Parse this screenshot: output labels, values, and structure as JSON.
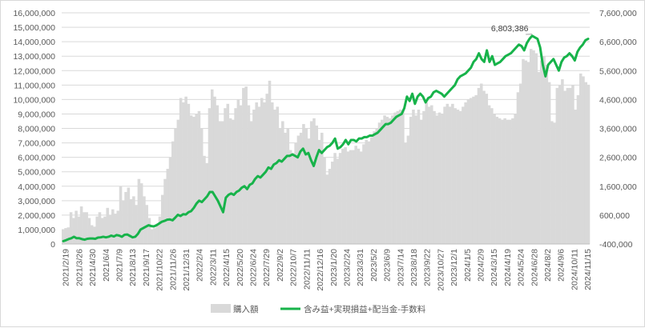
{
  "chart_data": {
    "type": "bar+line",
    "title": "",
    "grid": true,
    "legend_position": "bottom",
    "colors": {
      "bars": "#d9d9d9",
      "line": "#17b34a",
      "grid": "#d9d9d9",
      "text": "#595959"
    },
    "y_left": {
      "min": 0,
      "max": 16000000,
      "step": 1000000,
      "tick_labels": [
        "0",
        "1,000,000",
        "2,000,000",
        "3,000,000",
        "4,000,000",
        "5,000,000",
        "6,000,000",
        "7,000,000",
        "8,000,000",
        "9,000,000",
        "10,000,000",
        "11,000,000",
        "12,000,000",
        "13,000,000",
        "14,000,000",
        "15,000,000",
        "16,000,000"
      ]
    },
    "y_right": {
      "min": -400000,
      "max": 7600000,
      "step": 1000000,
      "tick_labels": [
        "-400,000",
        "600,000",
        "1,600,000",
        "2,600,000",
        "3,600,000",
        "4,600,000",
        "5,600,000",
        "6,600,000",
        "7,600,000"
      ]
    },
    "x_tick_labels": [
      "2021/2/19",
      "2021/3/26",
      "2021/4/30",
      "2021/6/4",
      "2021/7/9",
      "2021/8/13",
      "2021/9/17",
      "2021/10/22",
      "2021/11/26",
      "2021/12/31",
      "2022/2/4",
      "2022/3/11",
      "2022/4/15",
      "2022/5/20",
      "2022/6/24",
      "2022/7/29",
      "2022/9/2",
      "2022/10/7",
      "2022/11/11",
      "2022/12/16",
      "2023/1/20",
      "2023/2/24",
      "2023/3/31",
      "2023/5/2",
      "2023/6/9",
      "2023/7/14",
      "2023/8/18",
      "2023/9/22",
      "2023/10/27",
      "2023/12/1",
      "2024/1/5",
      "2024/2/9",
      "2024/3/15",
      "2024/4/19",
      "2024/5/24",
      "2024/6/28",
      "2024/8/2",
      "2024/9/6",
      "2024/10/11",
      "2024/11/15"
    ],
    "series": [
      {
        "name": "購入額",
        "type": "bar",
        "axis": "left",
        "values": [
          1000000,
          1100000,
          1150000,
          2200000,
          1800000,
          2300000,
          1900000,
          2600000,
          2200000,
          2200000,
          1800000,
          1300000,
          1200000,
          1900000,
          2200000,
          1800000,
          1900000,
          2500000,
          2000000,
          2400000,
          2100000,
          2300000,
          4000000,
          3000000,
          3600000,
          3900000,
          3100000,
          3300000,
          2700000,
          4500000,
          4200000,
          3300000,
          2700000,
          1800000,
          1000000,
          1100000,
          1400000,
          1900000,
          3400000,
          4500000,
          5200000,
          6000000,
          7100000,
          8000000,
          8600000,
          10100000,
          9800000,
          10200000,
          9700000,
          8900000,
          8800000,
          9000000,
          9200000,
          8000000,
          6100000,
          5600000,
          9400000,
          10700000,
          10200000,
          9600000,
          8500000,
          8500000,
          9400000,
          9700000,
          8700000,
          8600000,
          9400000,
          10000000,
          9600000,
          10800000,
          10900000,
          9600000,
          8500000,
          9300000,
          9800000,
          9500000,
          10100000,
          9800000,
          10400000,
          11300000,
          9800000,
          9300000,
          9500000,
          8000000,
          8500000,
          7700000,
          8000000,
          6500000,
          6300000,
          7000000,
          7500000,
          7700000,
          8300000,
          8000000,
          7300000,
          8500000,
          8700000,
          8200000,
          7200000,
          7700000,
          6000000,
          4800000,
          5200000,
          5700000,
          6300000,
          5900000,
          6300000,
          6600000,
          6700000,
          6400000,
          6500000,
          6500000,
          6800000,
          6600000,
          6400000,
          6900000,
          7200000,
          7100000,
          7400000,
          7800000,
          8000000,
          8400000,
          8600000,
          8900000,
          8800000,
          8700000,
          8900000,
          9100000,
          9200000,
          9300000,
          9200000,
          7000000,
          7500000,
          8800000,
          9300000,
          8900000,
          9300000,
          8600000,
          9200000,
          9800000,
          9500000,
          9600000,
          9200000,
          8900000,
          9100000,
          9000000,
          9500000,
          9700000,
          9500000,
          9700000,
          9400000,
          9300000,
          9200000,
          9500000,
          9800000,
          10000000,
          10100000,
          10200000,
          10300000,
          10800000,
          11100000,
          10600000,
          10400000,
          9600000,
          9400000,
          9000000,
          8800000,
          8700000,
          8600000,
          8700000,
          8600000,
          8600000,
          8700000,
          9000000,
          10500000,
          11100000,
          12800000,
          12700000,
          12600000,
          13500000,
          13400000,
          13200000,
          11900000,
          12700000,
          13000000,
          12400000,
          11200000,
          8500000,
          8400000,
          10800000,
          11000000,
          11400000,
          10600000,
          10800000,
          10800000,
          11000000,
          9300000,
          10300000,
          11800000,
          11600000,
          11200000,
          11000000
        ]
      },
      {
        "name": "含み益+実現損益+配当金-手数料",
        "type": "line",
        "axis": "right",
        "values": [
          -300000,
          -270000,
          -230000,
          -200000,
          -150000,
          -200000,
          -200000,
          -230000,
          -250000,
          -220000,
          -210000,
          -210000,
          -220000,
          -180000,
          -170000,
          -150000,
          -170000,
          -150000,
          -110000,
          -140000,
          -90000,
          -110000,
          -150000,
          -80000,
          -70000,
          -120000,
          -170000,
          -150000,
          -50000,
          100000,
          150000,
          200000,
          250000,
          220000,
          210000,
          250000,
          310000,
          370000,
          400000,
          440000,
          450000,
          420000,
          510000,
          610000,
          570000,
          630000,
          620000,
          700000,
          740000,
          850000,
          1000000,
          1100000,
          1050000,
          1150000,
          1250000,
          1400000,
          1400000,
          1250000,
          1100000,
          900000,
          700000,
          1200000,
          1300000,
          1350000,
          1300000,
          1400000,
          1450000,
          1550000,
          1600000,
          1500000,
          1650000,
          1700000,
          1850000,
          1950000,
          1900000,
          2000000,
          2100000,
          2250000,
          2200000,
          2350000,
          2400000,
          2500000,
          2450000,
          2550000,
          2650000,
          2650000,
          2700000,
          2650000,
          2600000,
          2800000,
          2900000,
          2700000,
          2750000,
          2500000,
          2300000,
          2600000,
          2850000,
          2750000,
          2850000,
          2950000,
          3000000,
          3100000,
          3250000,
          2900000,
          2950000,
          3050000,
          3200000,
          3050000,
          3200000,
          3200000,
          3150000,
          3250000,
          3250000,
          3300000,
          3300000,
          3350000,
          3350000,
          3400000,
          3450000,
          3550000,
          3650000,
          3750000,
          3750000,
          3800000,
          3900000,
          4000000,
          4050000,
          4100000,
          4300000,
          4700000,
          4550000,
          4800000,
          4450000,
          4700000,
          4800000,
          4700000,
          4500000,
          4650000,
          4700000,
          4850000,
          4900000,
          4850000,
          4800000,
          4700000,
          4800000,
          4900000,
          5000000,
          5100000,
          5300000,
          5400000,
          5450000,
          5500000,
          5600000,
          5700000,
          5900000,
          6000000,
          6200000,
          6000000,
          5900000,
          6300000,
          5900000,
          6100000,
          5800000,
          5850000,
          5900000,
          6000000,
          6100000,
          6150000,
          6200000,
          6300000,
          6400000,
          6500000,
          6450000,
          6300000,
          6550000,
          6700000,
          6803386,
          6750000,
          6700000,
          6400000,
          5800000,
          5400000,
          5800000,
          5900000,
          6000000,
          5800000,
          5600000,
          5900000,
          6050000,
          6100000,
          6200000,
          6100000,
          5950000,
          6250000,
          6400000,
          6500000,
          6650000,
          6700000
        ]
      }
    ],
    "annotations": [
      {
        "text": "6,803,386",
        "series": "含み益+実現損益+配当金-手数料",
        "point": "max"
      }
    ]
  }
}
